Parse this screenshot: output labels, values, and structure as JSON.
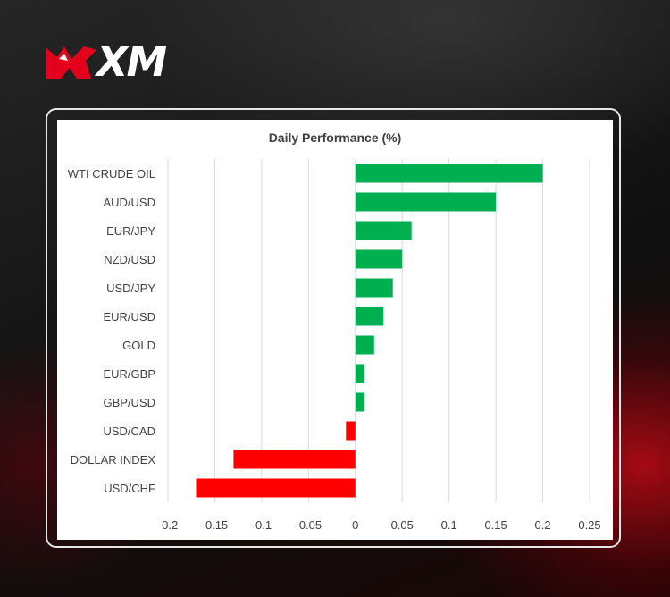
{
  "brand": {
    "name": "XM"
  },
  "colors": {
    "positive": "#00b050",
    "negative": "#ff0000",
    "grid": "#d9d9d9",
    "text": "#404040"
  },
  "chart_data": {
    "type": "bar",
    "orientation": "horizontal",
    "title": "Daily Performance (%)",
    "xlabel": "",
    "ylabel": "",
    "categories": [
      "WTI CRUDE OIL",
      "AUD/USD",
      "EUR/JPY",
      "NZD/USD",
      "USD/JPY",
      "EUR/USD",
      "GOLD",
      "EUR/GBP",
      "GBP/USD",
      "USD/CAD",
      "DOLLAR INDEX",
      "USD/CHF"
    ],
    "values": [
      0.2,
      0.15,
      0.06,
      0.05,
      0.04,
      0.03,
      0.02,
      0.01,
      0.01,
      -0.01,
      -0.13,
      -0.17
    ],
    "xlim": [
      -0.2,
      0.25
    ],
    "xticks": [
      -0.2,
      -0.15,
      -0.1,
      -0.05,
      0,
      0.05,
      0.1,
      0.15,
      0.2,
      0.25
    ],
    "xtick_labels": [
      "-0.2",
      "-0.15",
      "-0.1",
      "-0.05",
      "0",
      "0.05",
      "0.1",
      "0.15",
      "0.2",
      "0.25"
    ],
    "grid": "vertical",
    "legend": "none"
  }
}
